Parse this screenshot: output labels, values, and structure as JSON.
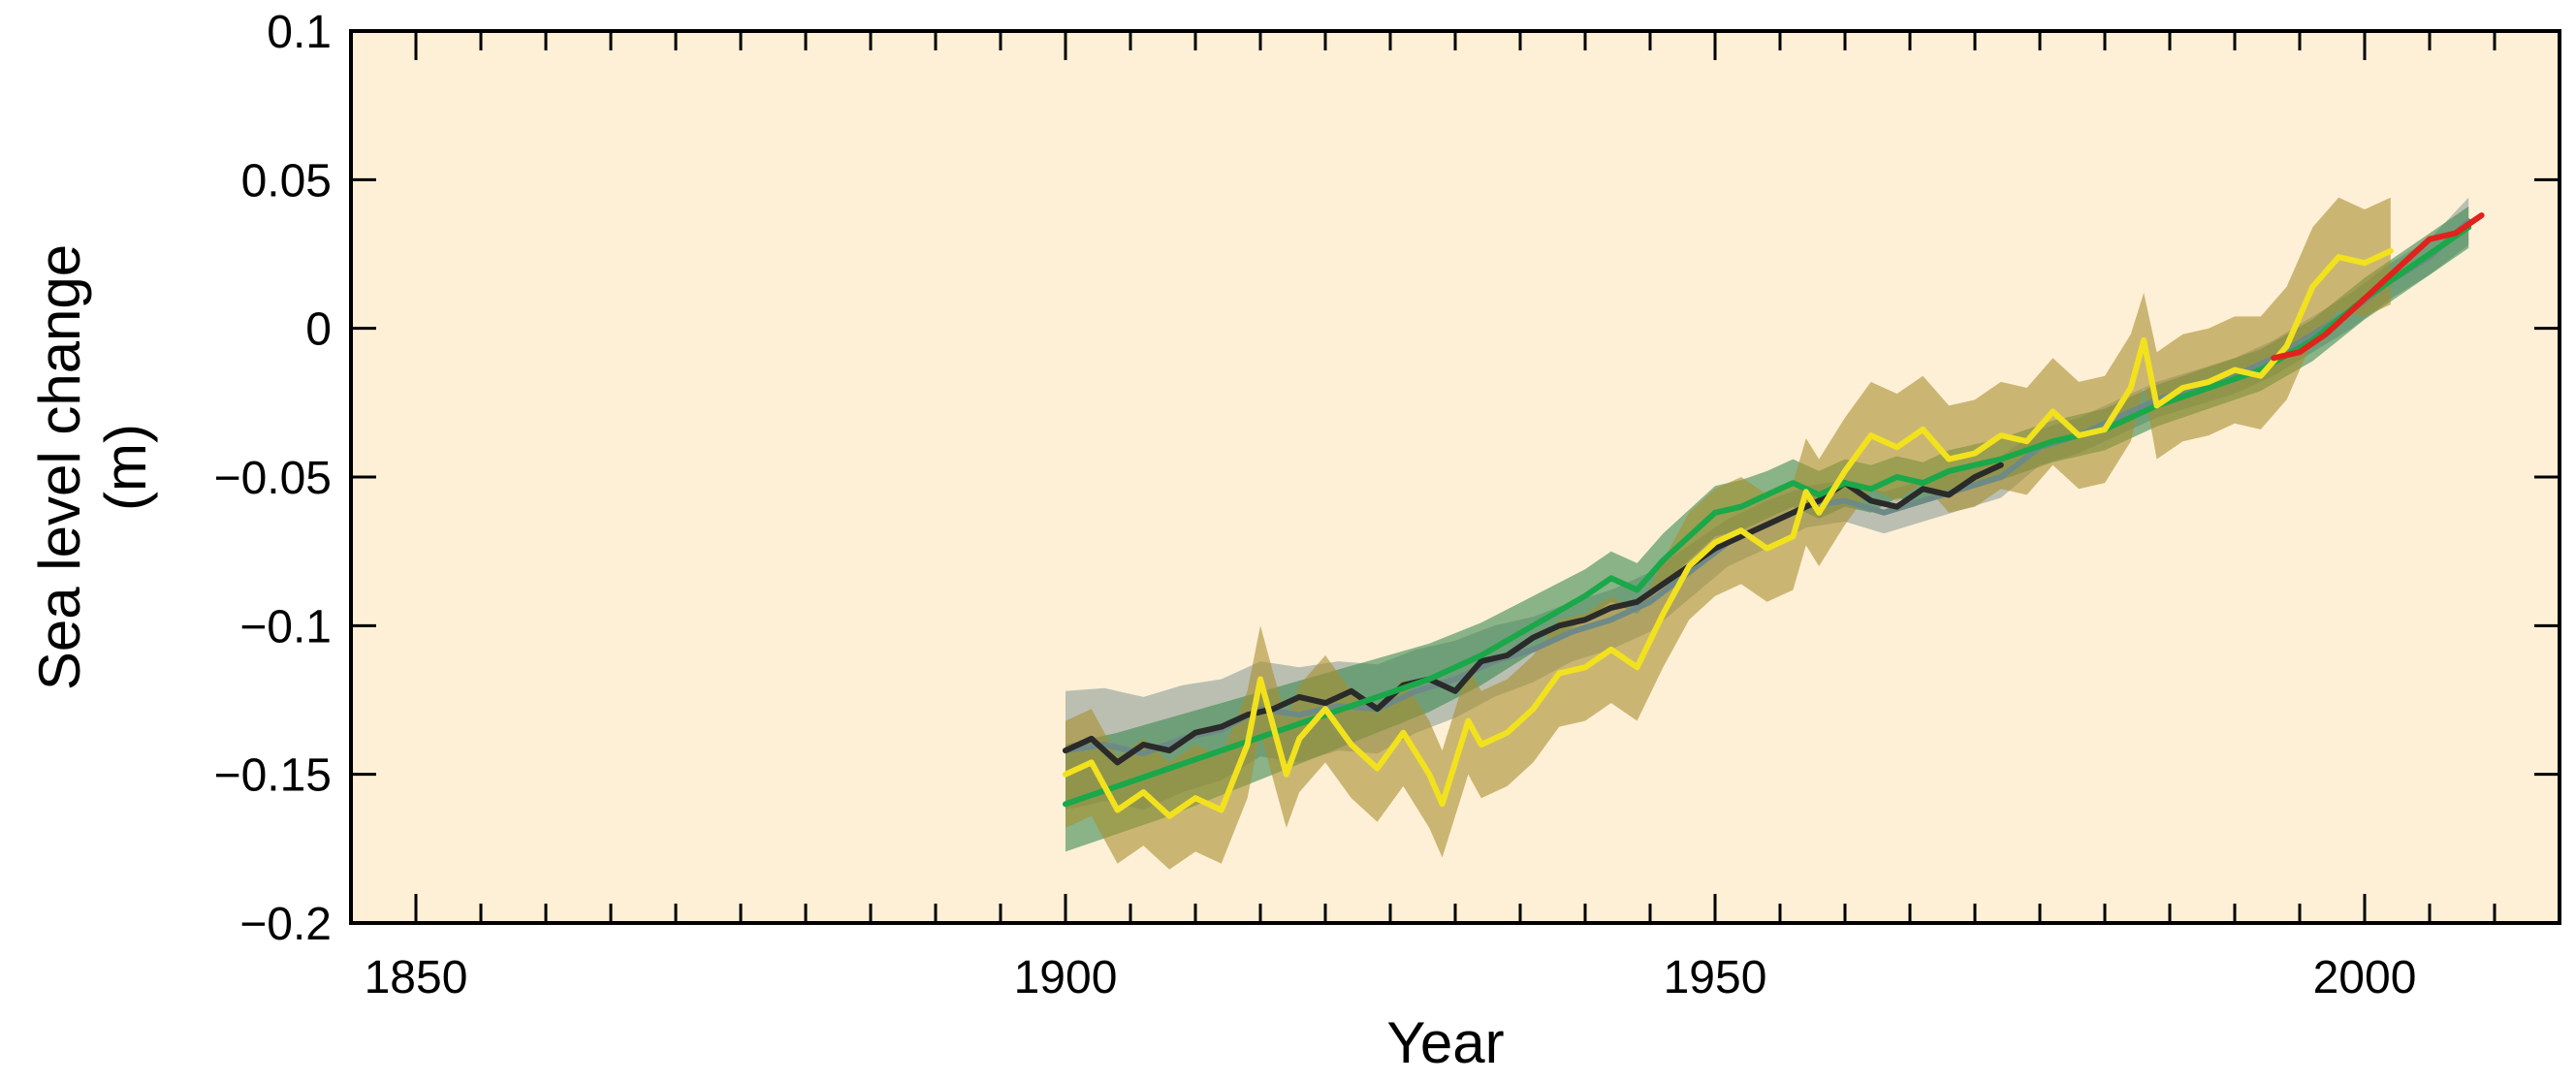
{
  "chart_data": {
    "type": "line",
    "title": "",
    "xlabel": "Year",
    "ylabel": "Sea level change",
    "ylabel_unit": "(m)",
    "xlim": [
      1845,
      2015
    ],
    "ylim": [
      -0.2,
      0.1
    ],
    "x_ticks": [
      1850,
      1900,
      1950,
      2000
    ],
    "x_tick_labels": [
      "1850",
      "1900",
      "1950",
      "2000"
    ],
    "y_ticks": [
      0.1,
      0.05,
      0,
      -0.05,
      -0.1,
      -0.15,
      -0.2
    ],
    "y_tick_labels": [
      "0.1",
      "0.05",
      "0",
      "−0.05",
      "−0.1",
      "−0.15",
      "−0.2"
    ],
    "minor_x_tick_step": 5,
    "grid": false,
    "background_color": "#fdf0d6",
    "series": [
      {
        "color": "#6e8a86",
        "band_color": "#8e9f98",
        "x": [
          1900,
          1903,
          1906,
          1909,
          1912,
          1915,
          1918,
          1921,
          1924,
          1927,
          1930,
          1933,
          1936,
          1939,
          1942,
          1945,
          1948,
          1951,
          1954,
          1957,
          1960,
          1963,
          1966,
          1969,
          1972,
          1975,
          1978,
          1981,
          1984,
          1987,
          1990,
          1993,
          1996,
          1999,
          2002,
          2005,
          2008
        ],
        "values": [
          -0.142,
          -0.14,
          -0.143,
          -0.138,
          -0.135,
          -0.128,
          -0.13,
          -0.127,
          -0.128,
          -0.122,
          -0.118,
          -0.112,
          -0.108,
          -0.102,
          -0.098,
          -0.092,
          -0.082,
          -0.072,
          -0.066,
          -0.06,
          -0.058,
          -0.062,
          -0.058,
          -0.054,
          -0.05,
          -0.04,
          -0.036,
          -0.03,
          -0.024,
          -0.02,
          -0.016,
          -0.01,
          -0.002,
          0.006,
          0.016,
          0.024,
          0.036
        ],
        "upper": [
          -0.122,
          -0.121,
          -0.124,
          -0.12,
          -0.118,
          -0.112,
          -0.114,
          -0.112,
          -0.113,
          -0.108,
          -0.105,
          -0.1,
          -0.097,
          -0.092,
          -0.088,
          -0.082,
          -0.073,
          -0.064,
          -0.058,
          -0.053,
          -0.051,
          -0.055,
          -0.051,
          -0.047,
          -0.043,
          -0.034,
          -0.03,
          -0.024,
          -0.018,
          -0.014,
          -0.01,
          -0.004,
          0.004,
          0.012,
          0.022,
          0.03,
          0.044
        ],
        "lower": [
          -0.162,
          -0.159,
          -0.162,
          -0.156,
          -0.152,
          -0.144,
          -0.146,
          -0.142,
          -0.143,
          -0.136,
          -0.131,
          -0.124,
          -0.119,
          -0.112,
          -0.108,
          -0.102,
          -0.091,
          -0.08,
          -0.074,
          -0.067,
          -0.065,
          -0.069,
          -0.065,
          -0.061,
          -0.057,
          -0.046,
          -0.042,
          -0.036,
          -0.03,
          -0.026,
          -0.022,
          -0.016,
          -0.008,
          0.0,
          0.01,
          0.018,
          0.028
        ]
      },
      {
        "color": "#2a2a2a",
        "x": [
          1900,
          1902,
          1904,
          1906,
          1908,
          1910,
          1912,
          1914,
          1916,
          1918,
          1920,
          1922,
          1924,
          1926,
          1928,
          1930,
          1932,
          1934,
          1936,
          1938,
          1940,
          1942,
          1944,
          1946,
          1948,
          1950,
          1952,
          1954,
          1956,
          1958,
          1960,
          1962,
          1964,
          1966,
          1968,
          1970,
          1972
        ],
        "values": [
          -0.142,
          -0.138,
          -0.146,
          -0.14,
          -0.142,
          -0.136,
          -0.134,
          -0.13,
          -0.128,
          -0.124,
          -0.126,
          -0.122,
          -0.128,
          -0.12,
          -0.118,
          -0.122,
          -0.112,
          -0.11,
          -0.104,
          -0.1,
          -0.098,
          -0.094,
          -0.092,
          -0.086,
          -0.08,
          -0.074,
          -0.07,
          -0.066,
          -0.062,
          -0.058,
          -0.052,
          -0.058,
          -0.06,
          -0.054,
          -0.056,
          -0.05,
          -0.046
        ]
      },
      {
        "color": "#1aa84a",
        "band_color": "#3e8a52",
        "x": [
          1900,
          1904,
          1908,
          1912,
          1916,
          1920,
          1924,
          1928,
          1932,
          1936,
          1940,
          1942,
          1944,
          1946,
          1948,
          1950,
          1952,
          1954,
          1956,
          1958,
          1960,
          1962,
          1964,
          1966,
          1968,
          1970,
          1972,
          1976,
          1980,
          1984,
          1988,
          1992,
          1996,
          2000,
          2004,
          2008
        ],
        "values": [
          -0.16,
          -0.154,
          -0.148,
          -0.142,
          -0.136,
          -0.13,
          -0.124,
          -0.118,
          -0.11,
          -0.1,
          -0.09,
          -0.084,
          -0.088,
          -0.078,
          -0.07,
          -0.062,
          -0.06,
          -0.056,
          -0.052,
          -0.056,
          -0.052,
          -0.054,
          -0.05,
          -0.052,
          -0.048,
          -0.046,
          -0.044,
          -0.038,
          -0.034,
          -0.026,
          -0.02,
          -0.014,
          -0.004,
          0.01,
          0.022,
          0.034
        ],
        "upper": [
          -0.14,
          -0.136,
          -0.131,
          -0.126,
          -0.121,
          -0.116,
          -0.111,
          -0.106,
          -0.099,
          -0.09,
          -0.081,
          -0.075,
          -0.079,
          -0.069,
          -0.061,
          -0.053,
          -0.051,
          -0.048,
          -0.044,
          -0.048,
          -0.044,
          -0.046,
          -0.043,
          -0.045,
          -0.041,
          -0.039,
          -0.037,
          -0.031,
          -0.027,
          -0.019,
          -0.013,
          -0.007,
          0.003,
          0.017,
          0.029,
          0.041
        ],
        "lower": [
          -0.176,
          -0.17,
          -0.164,
          -0.157,
          -0.15,
          -0.143,
          -0.136,
          -0.129,
          -0.12,
          -0.109,
          -0.098,
          -0.092,
          -0.096,
          -0.086,
          -0.078,
          -0.07,
          -0.068,
          -0.064,
          -0.06,
          -0.064,
          -0.06,
          -0.062,
          -0.057,
          -0.059,
          -0.055,
          -0.053,
          -0.051,
          -0.045,
          -0.041,
          -0.033,
          -0.027,
          -0.021,
          -0.011,
          0.003,
          0.015,
          0.027
        ]
      },
      {
        "color": "#f2e21e",
        "band_color": "#a8902e",
        "x": [
          1900,
          1902,
          1904,
          1906,
          1908,
          1910,
          1912,
          1914,
          1915,
          1917,
          1918,
          1920,
          1922,
          1924,
          1926,
          1928,
          1929,
          1931,
          1932,
          1934,
          1936,
          1938,
          1940,
          1942,
          1944,
          1946,
          1948,
          1950,
          1952,
          1954,
          1956,
          1957,
          1958,
          1960,
          1962,
          1964,
          1966,
          1968,
          1970,
          1972,
          1974,
          1976,
          1978,
          1980,
          1982,
          1983,
          1984,
          1986,
          1988,
          1990,
          1992,
          1994,
          1996,
          1998,
          2000,
          2002
        ],
        "values": [
          -0.15,
          -0.146,
          -0.162,
          -0.156,
          -0.164,
          -0.158,
          -0.162,
          -0.14,
          -0.118,
          -0.15,
          -0.138,
          -0.128,
          -0.14,
          -0.148,
          -0.136,
          -0.15,
          -0.16,
          -0.132,
          -0.14,
          -0.136,
          -0.128,
          -0.116,
          -0.114,
          -0.108,
          -0.114,
          -0.096,
          -0.08,
          -0.072,
          -0.068,
          -0.074,
          -0.07,
          -0.055,
          -0.062,
          -0.048,
          -0.036,
          -0.04,
          -0.034,
          -0.044,
          -0.042,
          -0.036,
          -0.038,
          -0.028,
          -0.036,
          -0.034,
          -0.02,
          -0.004,
          -0.026,
          -0.02,
          -0.018,
          -0.014,
          -0.016,
          -0.006,
          0.014,
          0.024,
          0.022,
          0.026
        ],
        "upper": [
          -0.132,
          -0.128,
          -0.144,
          -0.138,
          -0.146,
          -0.14,
          -0.144,
          -0.122,
          -0.1,
          -0.132,
          -0.12,
          -0.11,
          -0.122,
          -0.13,
          -0.118,
          -0.132,
          -0.142,
          -0.114,
          -0.122,
          -0.118,
          -0.11,
          -0.098,
          -0.096,
          -0.09,
          -0.096,
          -0.078,
          -0.062,
          -0.054,
          -0.05,
          -0.056,
          -0.052,
          -0.037,
          -0.044,
          -0.03,
          -0.018,
          -0.022,
          -0.016,
          -0.026,
          -0.024,
          -0.018,
          -0.02,
          -0.01,
          -0.018,
          -0.016,
          -0.002,
          0.012,
          -0.008,
          -0.002,
          0.0,
          0.004,
          0.004,
          0.014,
          0.034,
          0.044,
          0.04,
          0.044
        ],
        "lower": [
          -0.168,
          -0.164,
          -0.18,
          -0.174,
          -0.182,
          -0.176,
          -0.18,
          -0.158,
          -0.136,
          -0.168,
          -0.156,
          -0.146,
          -0.158,
          -0.166,
          -0.154,
          -0.168,
          -0.178,
          -0.15,
          -0.158,
          -0.154,
          -0.146,
          -0.134,
          -0.132,
          -0.126,
          -0.132,
          -0.114,
          -0.098,
          -0.09,
          -0.086,
          -0.092,
          -0.088,
          -0.073,
          -0.08,
          -0.066,
          -0.054,
          -0.058,
          -0.052,
          -0.062,
          -0.06,
          -0.054,
          -0.056,
          -0.046,
          -0.054,
          -0.052,
          -0.038,
          -0.02,
          -0.044,
          -0.038,
          -0.036,
          -0.032,
          -0.034,
          -0.024,
          -0.004,
          0.006,
          0.004,
          0.008
        ]
      },
      {
        "color": "#e0231c",
        "x": [
          1993,
          1995,
          1997,
          1999,
          2001,
          2003,
          2005,
          2007,
          2009
        ],
        "values": [
          -0.01,
          -0.008,
          -0.002,
          0.006,
          0.014,
          0.022,
          0.03,
          0.032,
          0.038
        ]
      }
    ]
  }
}
